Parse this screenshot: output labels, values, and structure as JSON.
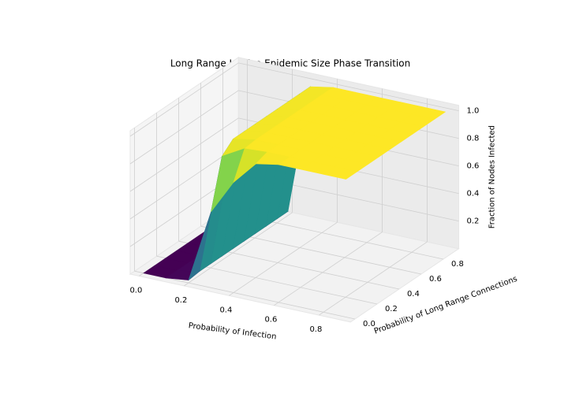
{
  "chart_data": {
    "type": "surface",
    "title": "Long Range Lattice Epidemic Size Phase Transition",
    "xlabel": "Probability of Infection",
    "ylabel": "Probability of Long Range Connections",
    "zlabel": "Fraction of Nodes Infected",
    "colormap": "viridis",
    "x": [
      0,
      0.1,
      0.2,
      0.3,
      0.4,
      0.5,
      0.6,
      0.7,
      0.8,
      0.9
    ],
    "y": [
      0,
      0.1,
      0.2,
      0.3,
      0.4,
      0.5,
      0.6,
      0.7,
      0.8,
      0.9
    ],
    "z": [
      [
        0,
        0,
        0.02,
        0.55,
        0.8,
        0.97,
        1,
        1,
        1,
        1
      ],
      [
        0,
        0,
        0.03,
        0.9,
        0.99,
        1,
        1,
        1,
        1,
        1
      ],
      [
        0,
        0,
        0.03,
        0.97,
        1,
        1,
        1,
        1,
        1,
        1
      ],
      [
        0,
        0,
        0.03,
        0.97,
        1,
        1,
        1,
        1,
        1,
        1
      ],
      [
        0,
        0,
        0.03,
        0.97,
        1,
        1,
        1,
        1,
        1,
        1
      ],
      [
        0,
        0,
        0.03,
        0.97,
        1,
        1,
        1,
        1,
        1,
        1
      ],
      [
        0,
        0,
        0.03,
        0.97,
        1,
        1,
        1,
        1,
        1,
        1
      ],
      [
        0,
        0,
        0.03,
        0.97,
        1,
        1,
        1,
        1,
        1,
        1
      ],
      [
        0,
        0,
        0.03,
        0.97,
        1,
        1,
        1,
        1,
        1,
        1
      ],
      [
        0,
        0,
        0.03,
        0.97,
        1,
        1,
        1,
        1,
        1,
        1
      ]
    ],
    "xlim": [
      -0.04,
      0.94
    ],
    "ylim": [
      -0.04,
      0.94
    ],
    "zlim": [
      0,
      1.04
    ],
    "xticks": [
      {
        "value": 0,
        "label": "0.0"
      },
      0.2,
      0.4,
      0.6,
      0.8
    ],
    "yticks": [
      {
        "value": 0,
        "label": "0.0"
      },
      0.2,
      0.4,
      0.6,
      0.8
    ],
    "zticks": [
      0.2,
      0.4,
      0.6,
      0.8,
      {
        "value": 1,
        "label": "1.0"
      }
    ],
    "grid": true
  }
}
